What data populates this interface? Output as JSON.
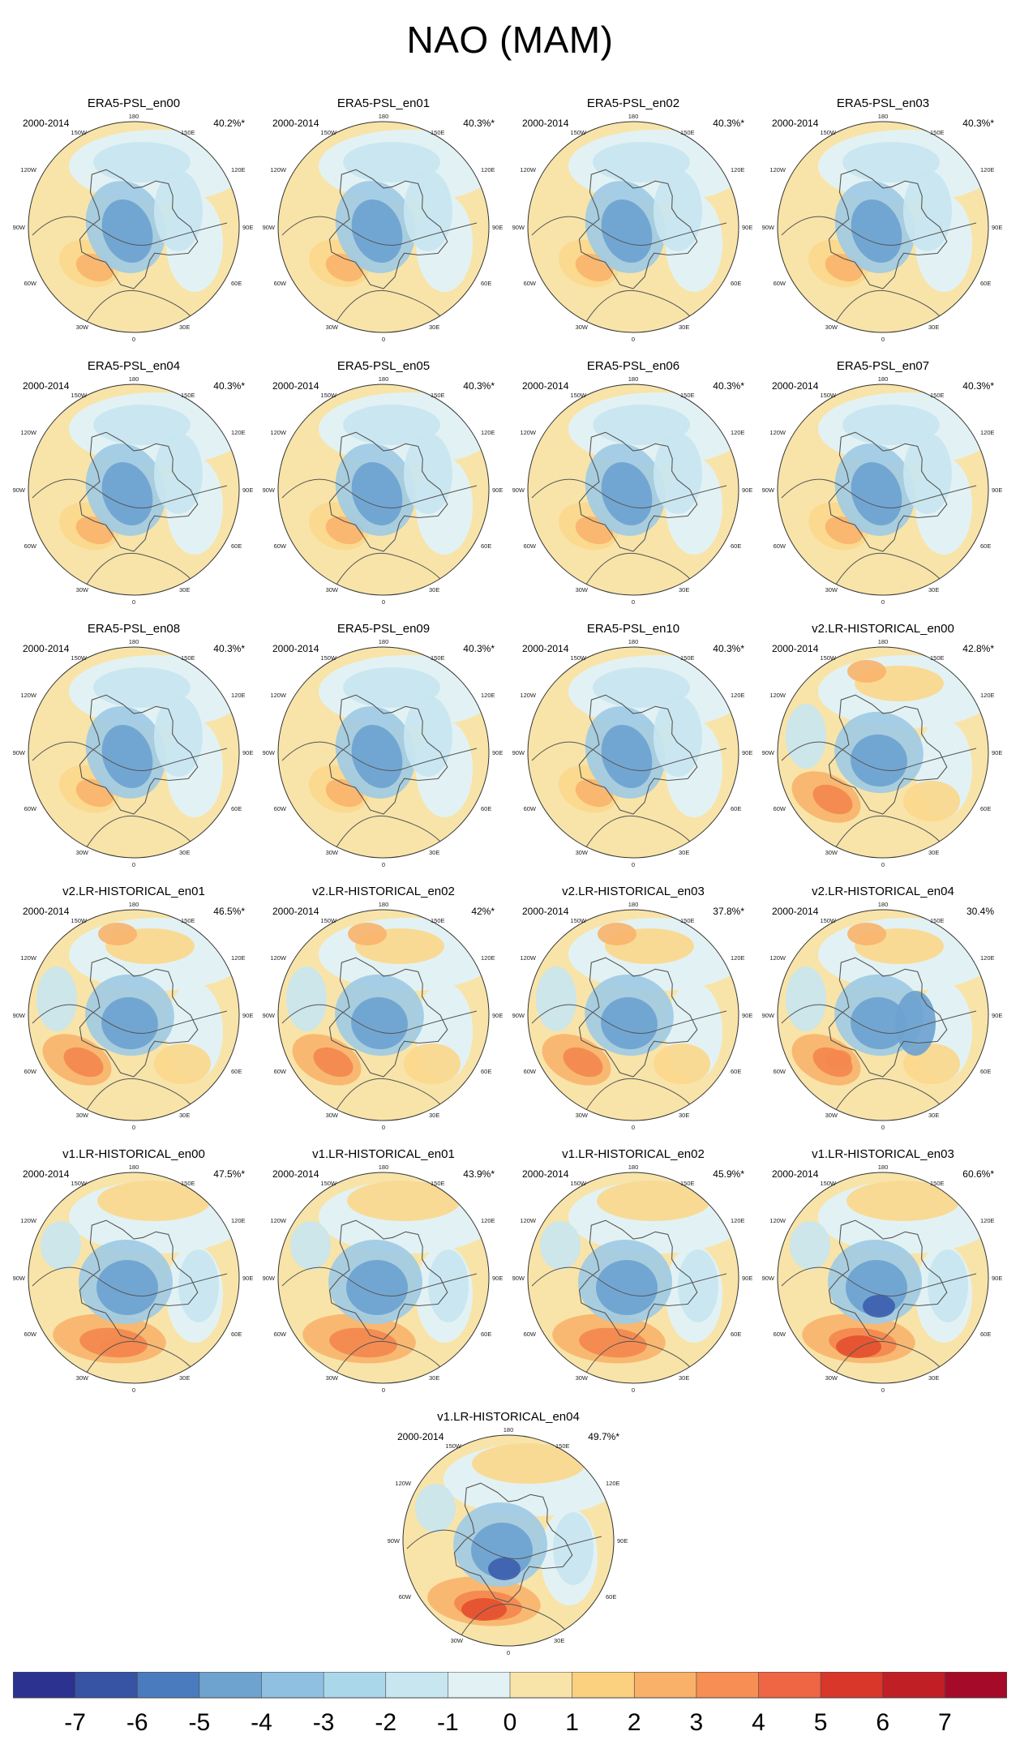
{
  "title": "NAO (MAM)",
  "chart_data": {
    "type": "heatmap",
    "projection": "north-polar-stereographic",
    "variable": "sea level pressure NAO pattern",
    "colorbar": {
      "ticks": [
        -7,
        -6,
        -5,
        -4,
        -3,
        -2,
        -1,
        0,
        1,
        2,
        3,
        4,
        5,
        6,
        7
      ],
      "colors": [
        "#2b3290",
        "#3753a3",
        "#4a7bbf",
        "#6ea3d0",
        "#8fc0e2",
        "#abd7ea",
        "#c8e6f0",
        "#e2f2f4",
        "#f8e4a9",
        "#fbd07f",
        "#f9b068",
        "#f78e53",
        "#ee6644",
        "#d8372a",
        "#c11f26",
        "#a50b28"
      ]
    },
    "map_labels": {
      "top": "180",
      "top_left": "150W",
      "top_right": "150E",
      "upper_left": "120W",
      "upper_right": "120E",
      "left": "90W",
      "right": "90E",
      "lower_left": "60W",
      "lower_right": "60E",
      "bottom_left": "30W",
      "bottom_right": "30E",
      "bottom": "0"
    },
    "panels": [
      {
        "title": "ERA5-PSL_en00",
        "period": "2000-2014",
        "variance": "40.2%*"
      },
      {
        "title": "ERA5-PSL_en01",
        "period": "2000-2014",
        "variance": "40.3%*"
      },
      {
        "title": "ERA5-PSL_en02",
        "period": "2000-2014",
        "variance": "40.3%*"
      },
      {
        "title": "ERA5-PSL_en03",
        "period": "2000-2014",
        "variance": "40.3%*"
      },
      {
        "title": "ERA5-PSL_en04",
        "period": "2000-2014",
        "variance": "40.3%*"
      },
      {
        "title": "ERA5-PSL_en05",
        "period": "2000-2014",
        "variance": "40.3%*"
      },
      {
        "title": "ERA5-PSL_en06",
        "period": "2000-2014",
        "variance": "40.3%*"
      },
      {
        "title": "ERA5-PSL_en07",
        "period": "2000-2014",
        "variance": "40.3%*"
      },
      {
        "title": "ERA5-PSL_en08",
        "period": "2000-2014",
        "variance": "40.3%*"
      },
      {
        "title": "ERA5-PSL_en09",
        "period": "2000-2014",
        "variance": "40.3%*"
      },
      {
        "title": "ERA5-PSL_en10",
        "period": "2000-2014",
        "variance": "40.3%*"
      },
      {
        "title": "v2.LR-HISTORICAL_en00",
        "period": "2000-2014",
        "variance": "42.8%*"
      },
      {
        "title": "v2.LR-HISTORICAL_en01",
        "period": "2000-2014",
        "variance": "46.5%*"
      },
      {
        "title": "v2.LR-HISTORICAL_en02",
        "period": "2000-2014",
        "variance": "42%*"
      },
      {
        "title": "v2.LR-HISTORICAL_en03",
        "period": "2000-2014",
        "variance": "37.8%*"
      },
      {
        "title": "v2.LR-HISTORICAL_en04",
        "period": "2000-2014",
        "variance": "30.4%"
      },
      {
        "title": "v1.LR-HISTORICAL_en00",
        "period": "2000-2014",
        "variance": "47.5%*"
      },
      {
        "title": "v1.LR-HISTORICAL_en01",
        "period": "2000-2014",
        "variance": "43.9%*"
      },
      {
        "title": "v1.LR-HISTORICAL_en02",
        "period": "2000-2014",
        "variance": "45.9%*"
      },
      {
        "title": "v1.LR-HISTORICAL_en03",
        "period": "2000-2014",
        "variance": "60.6%*"
      },
      {
        "title": "v1.LR-HISTORICAL_en04",
        "period": "2000-2014",
        "variance": "49.7%*"
      }
    ]
  }
}
